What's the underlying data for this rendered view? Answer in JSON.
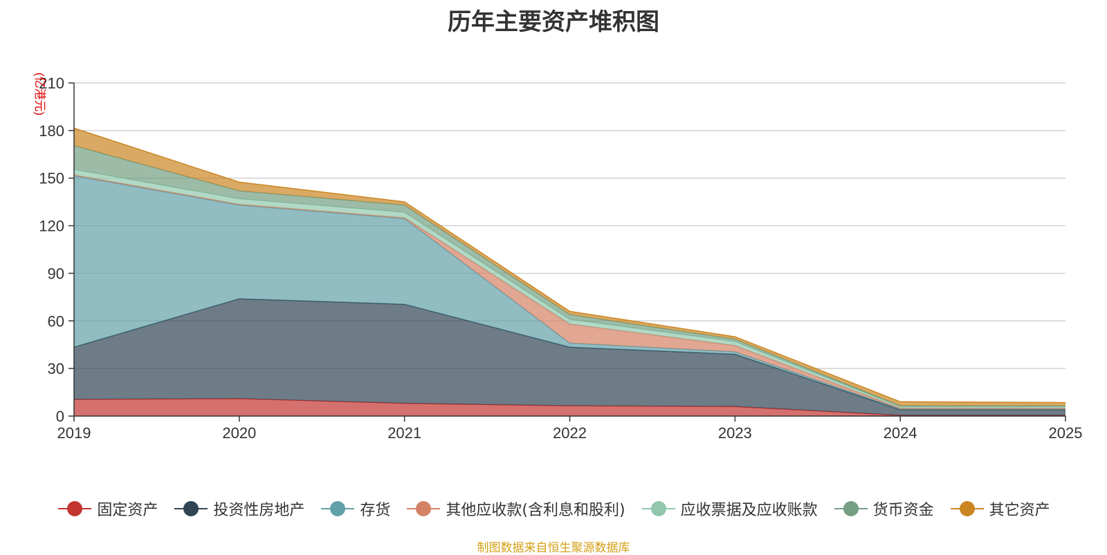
{
  "chart_data": {
    "type": "area",
    "stacked": true,
    "title": "历年主要资产堆积图",
    "ylabel": "(亿港元)",
    "xlabel": "",
    "x": [
      "2019",
      "2020",
      "2021",
      "2022",
      "2023",
      "2024",
      "2025"
    ],
    "ylim": [
      0,
      210
    ],
    "yticks": [
      0,
      30,
      60,
      90,
      120,
      150,
      180,
      210
    ],
    "grid": true,
    "legend_position": "bottom",
    "series": [
      {
        "name": "固定资产",
        "color": "#c23531",
        "values": [
          10.5,
          11,
          8,
          6.5,
          6,
          0.5,
          0.5
        ]
      },
      {
        "name": "投资性房地产",
        "color": "#2f4554",
        "values": [
          33,
          63,
          62.5,
          37,
          33,
          3.5,
          3.5
        ]
      },
      {
        "name": "存货",
        "color": "#61a0a8",
        "values": [
          108,
          59,
          54,
          2.5,
          1.5,
          0.5,
          0.5
        ]
      },
      {
        "name": "其他应收款(含利息和股利)",
        "color": "#d48265",
        "values": [
          0.5,
          0.5,
          0.5,
          12,
          4,
          0.5,
          0.5
        ]
      },
      {
        "name": "应收票据及应收账款",
        "color": "#91c7ae",
        "values": [
          3.5,
          3.5,
          3.5,
          3,
          2.5,
          1,
          1
        ]
      },
      {
        "name": "货币资金",
        "color": "#749f83",
        "values": [
          15,
          5,
          4.5,
          3,
          1.5,
          0.5,
          0.5
        ]
      },
      {
        "name": "其它资产",
        "color": "#ca8622",
        "values": [
          11,
          5.5,
          2,
          2,
          1.5,
          2.5,
          2
        ]
      }
    ]
  },
  "source_note": "制图数据来自恒生聚源数据库"
}
